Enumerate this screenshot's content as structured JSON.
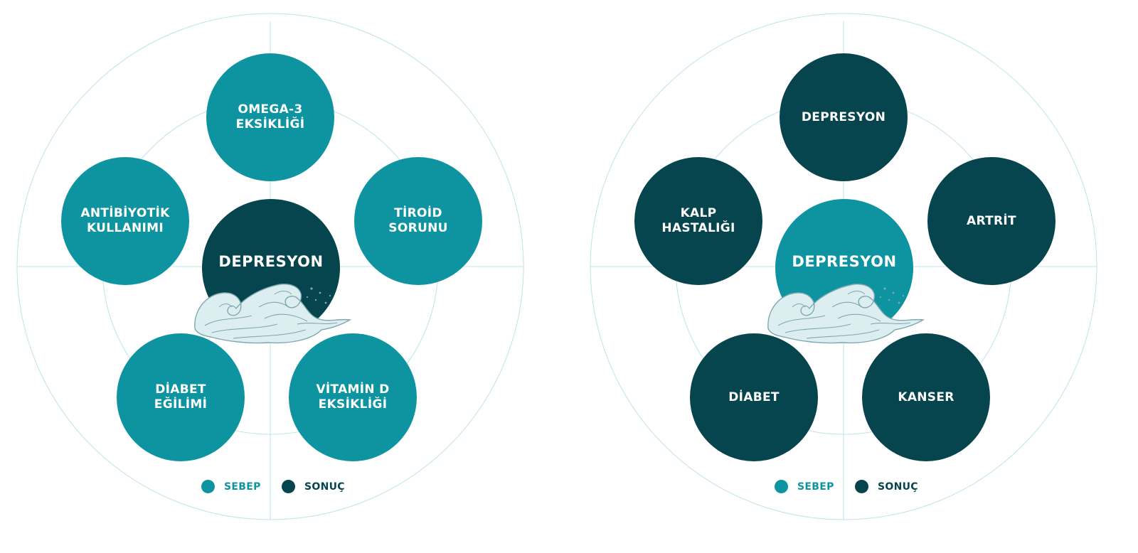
{
  "colors": {
    "cause": "#0e94a0",
    "effect": "#06444e",
    "guide": "#bfe3e6"
  },
  "diagrams": [
    {
      "center": {
        "label": "DEPRESYON",
        "role": "effect"
      },
      "nodes": [
        {
          "label": "OMEGA-3\nEKSİKLİĞİ",
          "role": "cause"
        },
        {
          "label": "TİROİD\nSORUNU",
          "role": "cause"
        },
        {
          "label": "VİTAMİN D\nEKSİKLİĞİ",
          "role": "cause"
        },
        {
          "label": "DİABET\nEĞİLİMİ",
          "role": "cause"
        },
        {
          "label": "ANTİBİYOTİK\nKULLANIMI",
          "role": "cause"
        }
      ],
      "legend": [
        {
          "label": "SEBEP",
          "role": "cause"
        },
        {
          "label": "SONUÇ",
          "role": "effect"
        }
      ]
    },
    {
      "center": {
        "label": "DEPRESYON",
        "role": "cause"
      },
      "nodes": [
        {
          "label": "DEPRESYON",
          "role": "effect"
        },
        {
          "label": "ARTRİT",
          "role": "effect"
        },
        {
          "label": "KANSER",
          "role": "effect"
        },
        {
          "label": "DİABET",
          "role": "effect"
        },
        {
          "label": "KALP\nHASTALIĞI",
          "role": "effect"
        }
      ],
      "legend": [
        {
          "label": "SEBEP",
          "role": "cause"
        },
        {
          "label": "SONUÇ",
          "role": "effect"
        }
      ]
    }
  ]
}
